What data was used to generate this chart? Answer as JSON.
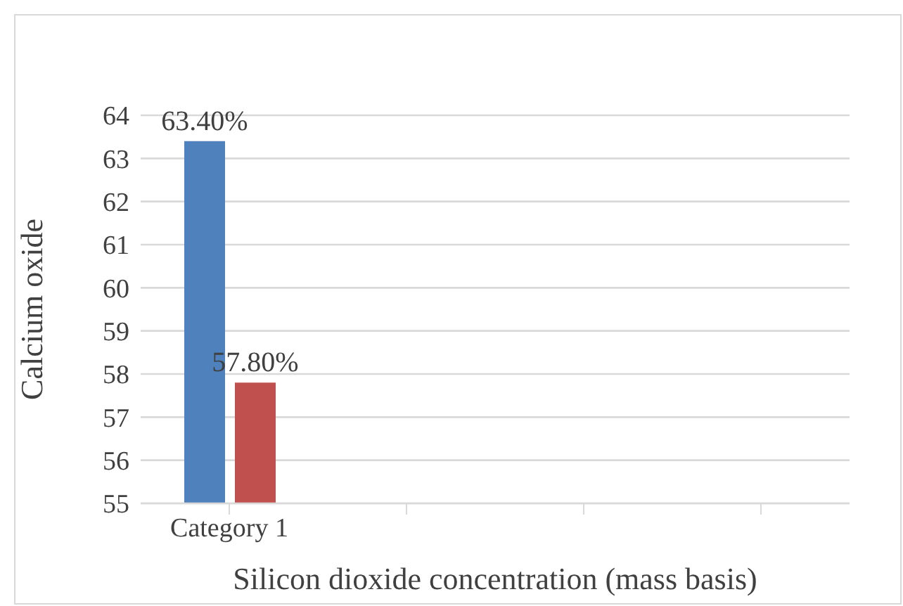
{
  "chart_data": {
    "type": "bar",
    "xlabel": "Silicon dioxide concentration (mass basis)",
    "ylabel": "Calcium oxide",
    "categories": [
      "Category 1",
      null,
      null,
      null
    ],
    "series": [
      {
        "color": "#4f81bd",
        "values": [
          63.4,
          null,
          null,
          null
        ],
        "value_labels": [
          "63.40%",
          null,
          null,
          null
        ]
      },
      {
        "color": "#c0504d",
        "values": [
          57.8,
          null,
          null,
          null
        ],
        "value_labels": [
          "57.80%",
          null,
          null,
          null
        ]
      }
    ],
    "ylim": [
      55,
      64
    ],
    "yticks": [
      55,
      56,
      57,
      58,
      59,
      60,
      61,
      62,
      63,
      64
    ],
    "grid": "y",
    "legend": false
  }
}
